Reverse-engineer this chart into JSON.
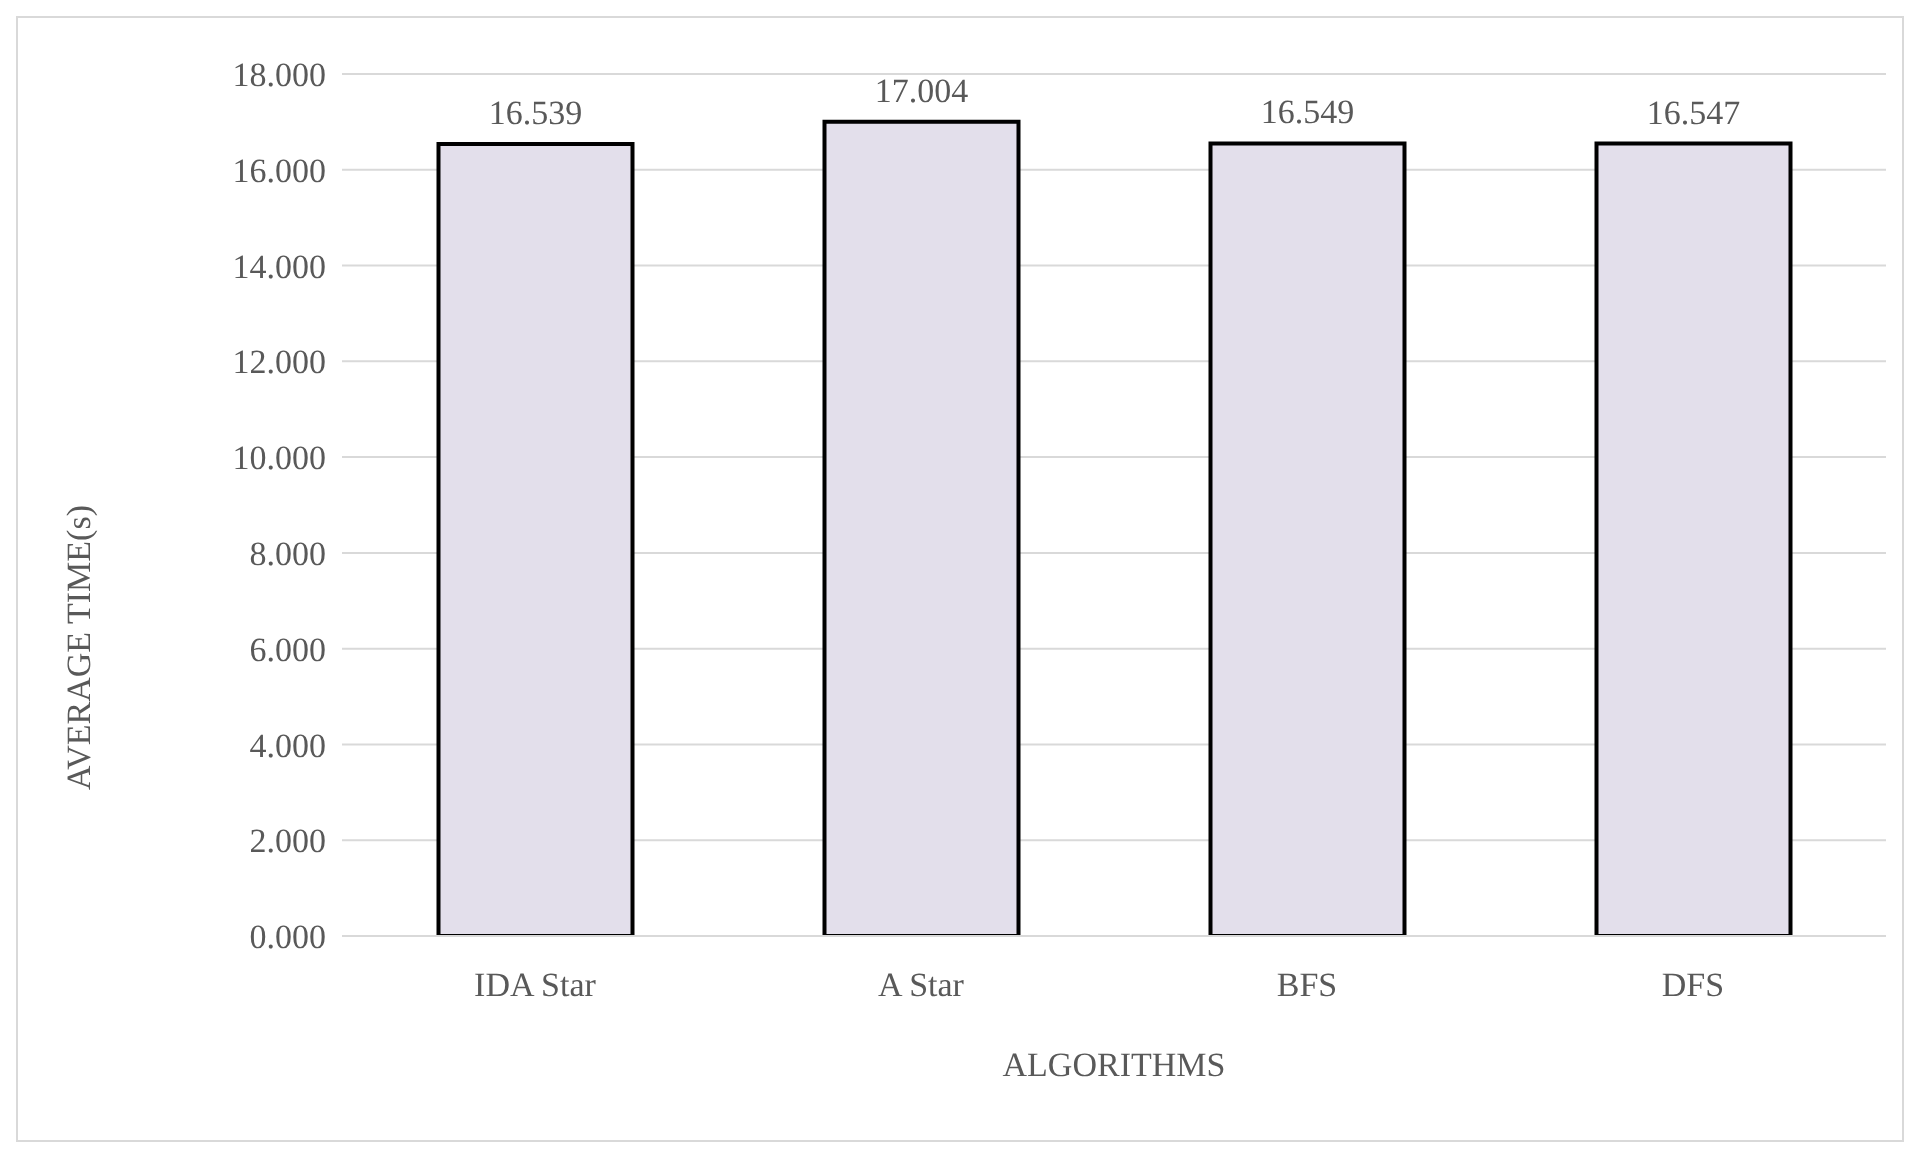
{
  "chart_data": {
    "type": "bar",
    "xlabel": "ALGORITHMS",
    "ylabel": "AVERAGE  TIME(s)",
    "categories": [
      "IDA Star",
      "A Star",
      "BFS",
      "DFS"
    ],
    "values": [
      16.539,
      17.004,
      16.549,
      16.547
    ],
    "color": "#e3dfeb",
    "ylim": [
      0,
      18
    ],
    "yticks": [
      {
        "value": 0,
        "label": "0.000"
      },
      {
        "value": 2,
        "label": "2.000"
      },
      {
        "value": 4,
        "label": "4.000"
      },
      {
        "value": 6,
        "label": "6.000"
      },
      {
        "value": 8,
        "label": "8.000"
      },
      {
        "value": 10,
        "label": "10.000"
      },
      {
        "value": 12,
        "label": "12.000"
      },
      {
        "value": 14,
        "label": "14.000"
      },
      {
        "value": 16,
        "label": "16.000"
      },
      {
        "value": 18,
        "label": "18.000"
      }
    ],
    "grid": "y",
    "data_labels": true,
    "legend": false
  }
}
